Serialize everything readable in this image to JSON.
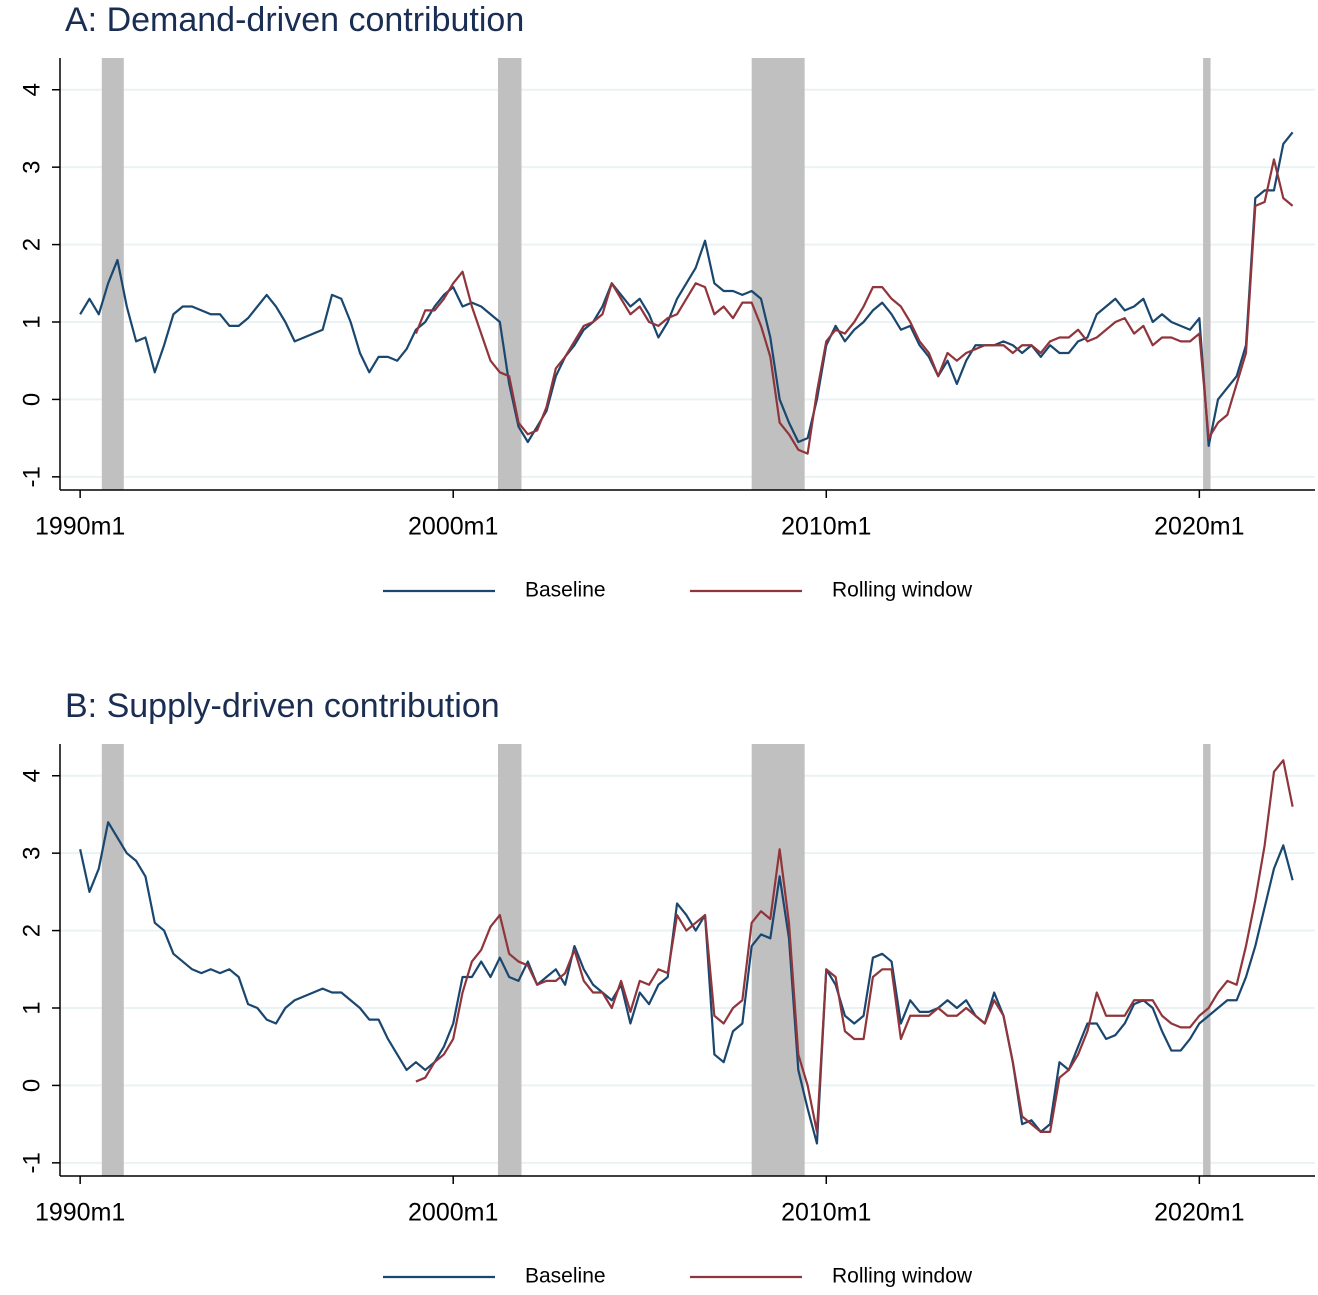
{
  "chart_data": [
    {
      "type": "line",
      "title": "A: Demand-driven contribution",
      "x": [
        1990,
        1990.25,
        1990.5,
        1990.75,
        1991,
        1991.25,
        1991.5,
        1991.75,
        1992,
        1992.25,
        1992.5,
        1992.75,
        1993,
        1993.25,
        1993.5,
        1993.75,
        1994,
        1994.25,
        1994.5,
        1994.75,
        1995,
        1995.25,
        1995.5,
        1995.75,
        1996,
        1996.25,
        1996.5,
        1996.75,
        1997,
        1997.25,
        1997.5,
        1997.75,
        1998,
        1998.25,
        1998.5,
        1998.75,
        1999,
        1999.25,
        1999.5,
        1999.75,
        2000,
        2000.25,
        2000.5,
        2000.75,
        2001,
        2001.25,
        2001.5,
        2001.75,
        2002,
        2002.25,
        2002.5,
        2002.75,
        2003,
        2003.25,
        2003.5,
        2003.75,
        2004,
        2004.25,
        2004.5,
        2004.75,
        2005,
        2005.25,
        2005.5,
        2005.75,
        2006,
        2006.25,
        2006.5,
        2006.75,
        2007,
        2007.25,
        2007.5,
        2007.75,
        2008,
        2008.25,
        2008.5,
        2008.75,
        2009,
        2009.25,
        2009.5,
        2009.75,
        2010,
        2010.25,
        2010.5,
        2010.75,
        2011,
        2011.25,
        2011.5,
        2011.75,
        2012,
        2012.25,
        2012.5,
        2012.75,
        2013,
        2013.25,
        2013.5,
        2013.75,
        2014,
        2014.25,
        2014.5,
        2014.75,
        2015,
        2015.25,
        2015.5,
        2015.75,
        2016,
        2016.25,
        2016.5,
        2016.75,
        2017,
        2017.25,
        2017.5,
        2017.75,
        2018,
        2018.25,
        2018.5,
        2018.75,
        2019,
        2019.25,
        2019.5,
        2019.75,
        2020,
        2020.25,
        2020.5,
        2020.75,
        2021,
        2021.25,
        2021.5,
        2021.75,
        2022,
        2022.25,
        2022.5
      ],
      "series": [
        {
          "name": "Baseline",
          "color": "#1a476f",
          "values": [
            1.1,
            1.3,
            1.1,
            1.5,
            1.8,
            1.2,
            0.75,
            0.8,
            0.35,
            0.7,
            1.1,
            1.2,
            1.2,
            1.15,
            1.1,
            1.1,
            0.95,
            0.95,
            1.05,
            1.2,
            1.35,
            1.2,
            1.0,
            0.75,
            0.8,
            0.85,
            0.9,
            1.35,
            1.3,
            1.0,
            0.6,
            0.35,
            0.55,
            0.55,
            0.5,
            0.65,
            0.9,
            1.0,
            1.2,
            1.35,
            1.45,
            1.2,
            1.25,
            1.2,
            1.1,
            1.0,
            0.2,
            -0.35,
            -0.55,
            -0.35,
            -0.15,
            0.3,
            0.55,
            0.7,
            0.9,
            1.0,
            1.2,
            1.5,
            1.35,
            1.2,
            1.3,
            1.1,
            0.8,
            1.0,
            1.3,
            1.5,
            1.7,
            2.05,
            1.5,
            1.4,
            1.4,
            1.35,
            1.4,
            1.3,
            0.8,
            0.0,
            -0.3,
            -0.55,
            -0.5,
            0.0,
            0.7,
            0.95,
            0.75,
            0.9,
            1.0,
            1.15,
            1.25,
            1.1,
            0.9,
            0.95,
            0.7,
            0.55,
            0.3,
            0.5,
            0.2,
            0.5,
            0.7,
            0.7,
            0.7,
            0.75,
            0.7,
            0.6,
            0.7,
            0.55,
            0.7,
            0.6,
            0.6,
            0.75,
            0.8,
            1.1,
            1.2,
            1.3,
            1.15,
            1.2,
            1.3,
            1.0,
            1.1,
            1.0,
            0.95,
            0.9,
            1.05,
            -0.6,
            0.0,
            0.15,
            0.3,
            0.7,
            2.6,
            2.7,
            2.7,
            3.3,
            3.45
          ]
        },
        {
          "name": "Rolling window",
          "color": "#90353b",
          "values": [
            null,
            null,
            null,
            null,
            null,
            null,
            null,
            null,
            null,
            null,
            null,
            null,
            null,
            null,
            null,
            null,
            null,
            null,
            null,
            null,
            null,
            null,
            null,
            null,
            null,
            null,
            null,
            null,
            null,
            null,
            null,
            null,
            null,
            null,
            null,
            null,
            0.85,
            1.15,
            1.15,
            1.3,
            1.5,
            1.65,
            1.2,
            0.85,
            0.5,
            0.35,
            0.3,
            -0.3,
            -0.45,
            -0.4,
            -0.1,
            0.4,
            0.55,
            0.75,
            0.95,
            1.0,
            1.1,
            1.5,
            1.3,
            1.1,
            1.2,
            1.0,
            0.95,
            1.05,
            1.1,
            1.3,
            1.5,
            1.45,
            1.1,
            1.2,
            1.05,
            1.25,
            1.25,
            0.95,
            0.55,
            -0.3,
            -0.45,
            -0.65,
            -0.7,
            0.1,
            0.75,
            0.9,
            0.85,
            1.0,
            1.2,
            1.45,
            1.45,
            1.3,
            1.2,
            1.0,
            0.75,
            0.6,
            0.3,
            0.6,
            0.5,
            0.6,
            0.65,
            0.7,
            0.7,
            0.7,
            0.6,
            0.7,
            0.7,
            0.6,
            0.75,
            0.8,
            0.8,
            0.9,
            0.75,
            0.8,
            0.9,
            1.0,
            1.05,
            0.85,
            0.95,
            0.7,
            0.8,
            0.8,
            0.75,
            0.75,
            0.85,
            -0.5,
            -0.3,
            -0.2,
            0.2,
            0.6,
            2.5,
            2.55,
            3.1,
            2.6,
            2.5
          ]
        }
      ],
      "recessions": [
        [
          1990.58,
          1991.17
        ],
        [
          2001.2,
          2001.83
        ],
        [
          2008.0,
          2009.42
        ],
        [
          2020.1,
          2020.3
        ]
      ],
      "xlim": [
        1989.46,
        2023.1
      ],
      "ylim": [
        -1.17,
        4.41
      ],
      "xticks": [
        {
          "value": 1990,
          "label": "1990m1"
        },
        {
          "value": 2000,
          "label": "2000m1"
        },
        {
          "value": 2010,
          "label": "2010m1"
        },
        {
          "value": 2020,
          "label": "2020m1"
        }
      ],
      "yticks": [
        -1,
        0,
        1,
        2,
        3,
        4
      ],
      "grid": true
    },
    {
      "type": "line",
      "title": "B: Supply-driven contribution",
      "x": [
        1990,
        1990.25,
        1990.5,
        1990.75,
        1991,
        1991.25,
        1991.5,
        1991.75,
        1992,
        1992.25,
        1992.5,
        1992.75,
        1993,
        1993.25,
        1993.5,
        1993.75,
        1994,
        1994.25,
        1994.5,
        1994.75,
        1995,
        1995.25,
        1995.5,
        1995.75,
        1996,
        1996.25,
        1996.5,
        1996.75,
        1997,
        1997.25,
        1997.5,
        1997.75,
        1998,
        1998.25,
        1998.5,
        1998.75,
        1999,
        1999.25,
        1999.5,
        1999.75,
        2000,
        2000.25,
        2000.5,
        2000.75,
        2001,
        2001.25,
        2001.5,
        2001.75,
        2002,
        2002.25,
        2002.5,
        2002.75,
        2003,
        2003.25,
        2003.5,
        2003.75,
        2004,
        2004.25,
        2004.5,
        2004.75,
        2005,
        2005.25,
        2005.5,
        2005.75,
        2006,
        2006.25,
        2006.5,
        2006.75,
        2007,
        2007.25,
        2007.5,
        2007.75,
        2008,
        2008.25,
        2008.5,
        2008.75,
        2009,
        2009.25,
        2009.5,
        2009.75,
        2010,
        2010.25,
        2010.5,
        2010.75,
        2011,
        2011.25,
        2011.5,
        2011.75,
        2012,
        2012.25,
        2012.5,
        2012.75,
        2013,
        2013.25,
        2013.5,
        2013.75,
        2014,
        2014.25,
        2014.5,
        2014.75,
        2015,
        2015.25,
        2015.5,
        2015.75,
        2016,
        2016.25,
        2016.5,
        2016.75,
        2017,
        2017.25,
        2017.5,
        2017.75,
        2018,
        2018.25,
        2018.5,
        2018.75,
        2019,
        2019.25,
        2019.5,
        2019.75,
        2020,
        2020.25,
        2020.5,
        2020.75,
        2021,
        2021.25,
        2021.5,
        2021.75,
        2022,
        2022.25,
        2022.5
      ],
      "series": [
        {
          "name": "Baseline",
          "color": "#1a476f",
          "values": [
            3.05,
            2.5,
            2.8,
            3.4,
            3.2,
            3.0,
            2.9,
            2.7,
            2.1,
            2.0,
            1.7,
            1.6,
            1.5,
            1.45,
            1.5,
            1.45,
            1.5,
            1.4,
            1.05,
            1.0,
            0.85,
            0.8,
            1.0,
            1.1,
            1.15,
            1.2,
            1.25,
            1.2,
            1.2,
            1.1,
            1.0,
            0.85,
            0.85,
            0.6,
            0.4,
            0.2,
            0.3,
            0.2,
            0.3,
            0.5,
            0.8,
            1.4,
            1.4,
            1.6,
            1.4,
            1.65,
            1.4,
            1.35,
            1.6,
            1.3,
            1.4,
            1.5,
            1.3,
            1.8,
            1.5,
            1.3,
            1.2,
            1.1,
            1.3,
            0.8,
            1.2,
            1.05,
            1.3,
            1.4,
            2.35,
            2.2,
            2.0,
            2.2,
            0.4,
            0.3,
            0.7,
            0.8,
            1.8,
            1.95,
            1.9,
            2.7,
            1.9,
            0.2,
            -0.3,
            -0.75,
            1.5,
            1.3,
            0.9,
            0.8,
            0.9,
            1.65,
            1.7,
            1.6,
            0.8,
            1.1,
            0.95,
            0.95,
            1.0,
            1.1,
            1.0,
            1.1,
            0.9,
            0.8,
            1.2,
            0.9,
            0.3,
            -0.5,
            -0.45,
            -0.6,
            -0.5,
            0.3,
            0.2,
            0.5,
            0.8,
            0.8,
            0.6,
            0.65,
            0.8,
            1.05,
            1.1,
            1.0,
            0.7,
            0.45,
            0.45,
            0.6,
            0.8,
            0.9,
            1.0,
            1.1,
            1.1,
            1.4,
            1.8,
            2.3,
            2.8,
            3.1,
            2.65
          ]
        },
        {
          "name": "Rolling window",
          "color": "#90353b",
          "values": [
            null,
            null,
            null,
            null,
            null,
            null,
            null,
            null,
            null,
            null,
            null,
            null,
            null,
            null,
            null,
            null,
            null,
            null,
            null,
            null,
            null,
            null,
            null,
            null,
            null,
            null,
            null,
            null,
            null,
            null,
            null,
            null,
            null,
            null,
            null,
            null,
            0.05,
            0.1,
            0.3,
            0.4,
            0.6,
            1.2,
            1.6,
            1.75,
            2.05,
            2.2,
            1.7,
            1.6,
            1.55,
            1.3,
            1.35,
            1.35,
            1.45,
            1.75,
            1.35,
            1.2,
            1.2,
            1.0,
            1.35,
            0.95,
            1.35,
            1.3,
            1.5,
            1.45,
            2.2,
            2.0,
            2.1,
            2.2,
            0.9,
            0.8,
            1.0,
            1.1,
            2.1,
            2.25,
            2.15,
            3.05,
            2.1,
            0.4,
            0.0,
            -0.6,
            1.5,
            1.4,
            0.7,
            0.6,
            0.6,
            1.4,
            1.5,
            1.5,
            0.6,
            0.9,
            0.9,
            0.9,
            1.0,
            0.9,
            0.9,
            1.0,
            0.9,
            0.8,
            1.1,
            0.9,
            0.3,
            -0.4,
            -0.5,
            -0.6,
            -0.6,
            0.1,
            0.2,
            0.4,
            0.7,
            1.2,
            0.9,
            0.9,
            0.9,
            1.1,
            1.1,
            1.1,
            0.9,
            0.8,
            0.75,
            0.75,
            0.9,
            1.0,
            1.2,
            1.35,
            1.3,
            1.8,
            2.4,
            3.1,
            4.05,
            4.2,
            3.6
          ]
        }
      ],
      "recessions": [
        [
          1990.58,
          1991.17
        ],
        [
          2001.2,
          2001.83
        ],
        [
          2008.0,
          2009.42
        ],
        [
          2020.1,
          2020.3
        ]
      ],
      "xlim": [
        1989.46,
        2023.1
      ],
      "ylim": [
        -1.17,
        4.41
      ],
      "xticks": [
        {
          "value": 1990,
          "label": "1990m1"
        },
        {
          "value": 2000,
          "label": "2000m1"
        },
        {
          "value": 2010,
          "label": "2010m1"
        },
        {
          "value": 2020,
          "label": "2020m1"
        }
      ],
      "yticks": [
        -1,
        0,
        1,
        2,
        3,
        4
      ],
      "grid": true
    }
  ]
}
